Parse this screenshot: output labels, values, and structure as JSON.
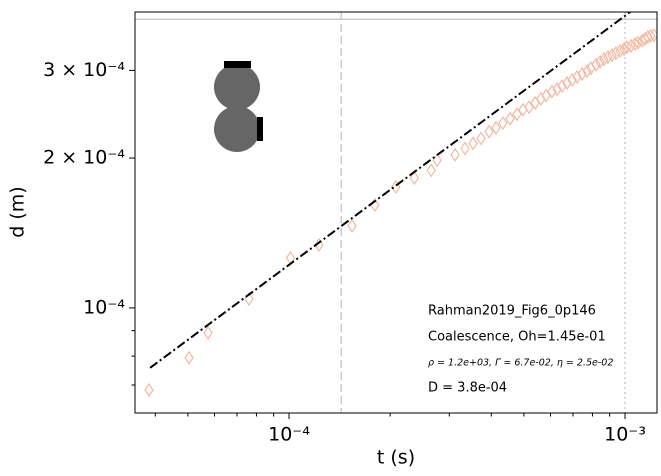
{
  "chart_data": {
    "type": "scatter",
    "x_label": "t (s)",
    "y_label": "d (m)",
    "xscale": "log",
    "yscale": "log",
    "xlim": [
      3.48e-05,
      0.001245
    ],
    "ylim": [
      6.15e-05,
      0.000393
    ],
    "xticks": [
      {
        "value": 0.0001,
        "label": "10⁻⁴"
      },
      {
        "value": 0.001,
        "label": "10⁻³"
      }
    ],
    "yticks": [
      {
        "value": 0.0001,
        "label": "10⁻⁴"
      },
      {
        "value": 0.0002,
        "label": "2 × 10⁻⁴"
      },
      {
        "value": 0.0003,
        "label": "3 × 10⁻⁴"
      }
    ],
    "xminorticks": [
      4e-05,
      5e-05,
      6e-05,
      7e-05,
      8e-05,
      9e-05,
      0.0002,
      0.0003,
      0.0004,
      0.0005,
      0.0006,
      0.0007,
      0.0008,
      0.0009
    ],
    "yminorticks": [
      7e-05,
      8e-05,
      9e-05
    ],
    "points": {
      "color": "#f2b8a2",
      "x": [
        3.83e-05,
        5.04e-05,
        5.74e-05,
        7.6e-05,
        0.000101,
        0.0001228,
        0.000154,
        0.00018,
        0.000208,
        0.000236,
        0.000265,
        0.000276,
        0.000312,
        0.000334,
        0.000353,
        0.000373,
        0.000394,
        0.000413,
        0.000433,
        0.000455,
        0.000477,
        0.000497,
        0.000518,
        0.00054,
        0.000562,
        0.000582,
        0.000606,
        0.000628,
        0.000649,
        0.000672,
        0.000696,
        0.00072,
        0.000745,
        0.000771,
        0.000792,
        0.00082,
        0.000843,
        0.000866,
        0.00089,
        0.000915,
        0.00094,
        0.000966,
        0.000993,
        0.001014,
        0.001042,
        0.001071,
        0.001094,
        0.001124,
        0.001147,
        0.00117,
        0.001194,
        0.001219
      ],
      "y": [
        6.84e-05,
        7.94e-05,
        8.91e-05,
        0.0001042,
        0.000126,
        0.0001338,
        0.0001461,
        0.000161,
        0.000175,
        0.0001824,
        0.000189,
        0.000198,
        0.000203,
        0.000209,
        0.000214,
        0.000219,
        0.000226,
        0.00023,
        0.000235,
        0.00024,
        0.000245,
        0.00025,
        0.000253,
        0.000258,
        0.000263,
        0.000267,
        0.000272,
        0.000275,
        0.000279,
        0.000283,
        0.000287,
        0.000291,
        0.000295,
        0.000299,
        0.000303,
        0.000308,
        0.000312,
        0.000316,
        0.000319,
        0.000322,
        0.000325,
        0.000328,
        0.000331,
        0.000334,
        0.000336,
        0.000339,
        0.000341,
        0.000344,
        0.000347,
        0.00035,
        0.000352,
        0.000353
      ]
    },
    "fit_line": {
      "color": "#000000",
      "x": [
        3.86e-05,
        0.0012
      ],
      "y": [
        7.58e-05,
        0.000423
      ]
    },
    "hlines": [
      {
        "value": 0.00038,
        "color": "#cccccc",
        "style": "solid"
      }
    ],
    "vlines": [
      {
        "value": 0.000143,
        "color": "#cccccc",
        "style": "dashed"
      },
      {
        "value": 0.001,
        "color": "#cccccc",
        "style": "dotted"
      }
    ],
    "annotations": [
      "Rahman2019_Fig6_0p146",
      "Coalescence, Oh=1.45e-01",
      "ρ = 1.2e+03, Γ = 6.7e-02, η = 2.5e-02",
      "D = 3.8e-04"
    ]
  }
}
